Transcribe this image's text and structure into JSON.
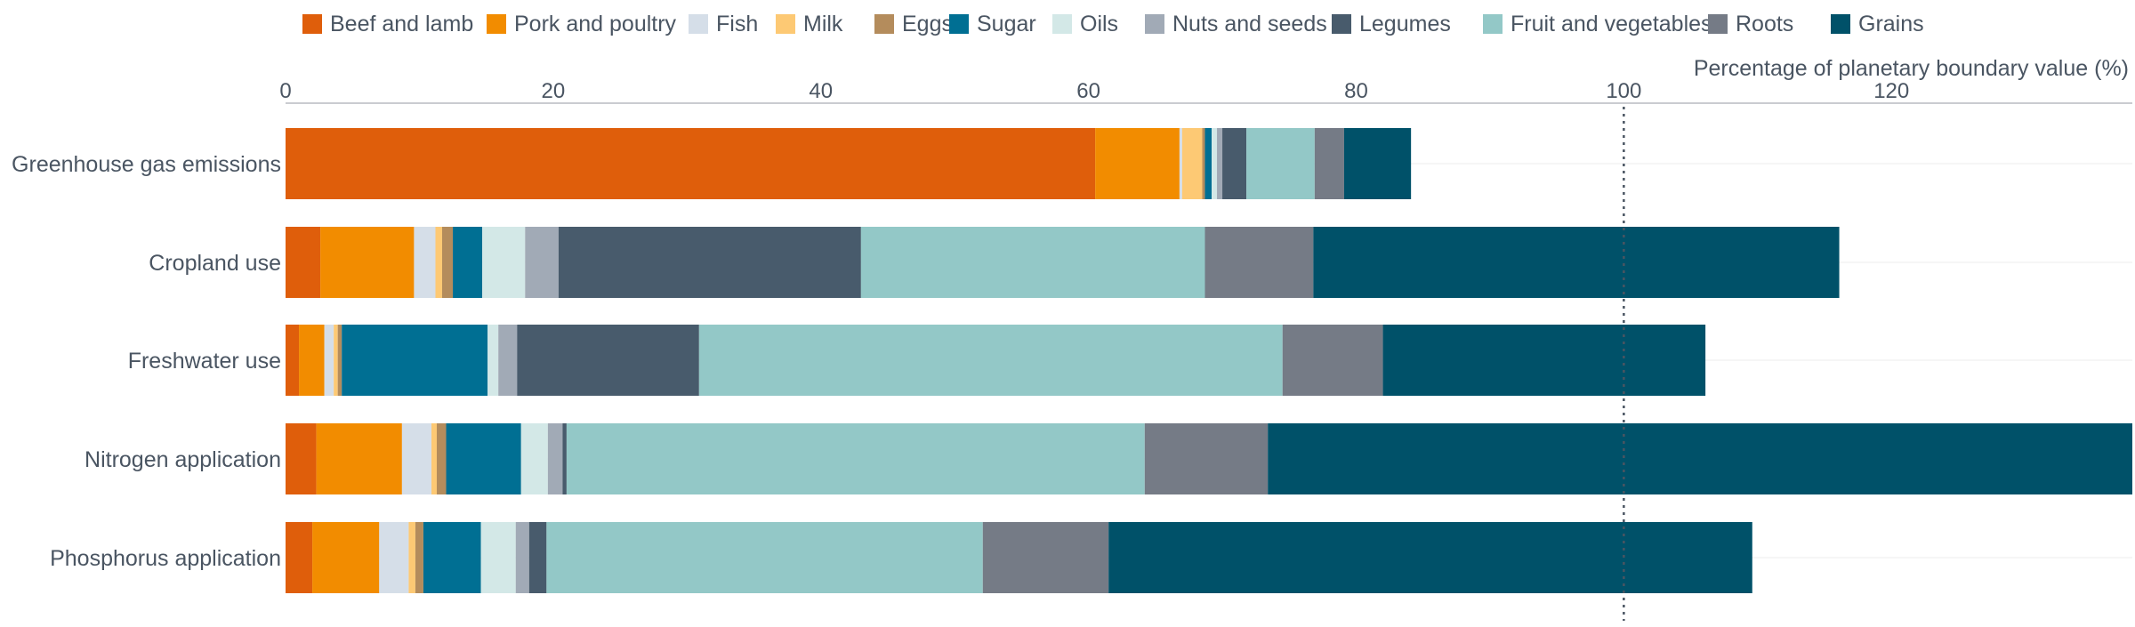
{
  "chart_data": {
    "type": "bar",
    "orientation": "horizontal",
    "stacked": true,
    "xlabel": "Percentage of planetary boundary value (%)",
    "xlim": [
      0,
      138
    ],
    "x_ticks": [
      0,
      20,
      40,
      60,
      80,
      100,
      120
    ],
    "reference_line": {
      "value": 100,
      "style": "dotted"
    },
    "legend_position": "top",
    "grid": "horizontal-light",
    "categories": [
      "Greenhouse gas emissions",
      "Cropland use",
      "Freshwater use",
      "Nitrogen application",
      "Phosphorus application"
    ],
    "series": [
      {
        "name": "Beef and lamb",
        "color": "#df5e0b",
        "values": [
          60.5,
          2.6,
          1.0,
          2.3,
          2.0
        ]
      },
      {
        "name": "Pork and poultry",
        "color": "#f28c00",
        "values": [
          6.3,
          7.0,
          1.9,
          6.4,
          5.0
        ]
      },
      {
        "name": "Fish",
        "color": "#d5dee8",
        "values": [
          0.2,
          1.6,
          0.7,
          2.2,
          2.2
        ]
      },
      {
        "name": "Milk",
        "color": "#fdc974",
        "values": [
          1.5,
          0.5,
          0.3,
          0.4,
          0.5
        ]
      },
      {
        "name": "Eggs",
        "color": "#b48c5c",
        "values": [
          0.2,
          0.8,
          0.3,
          0.7,
          0.6
        ]
      },
      {
        "name": "Sugar",
        "color": "#006f93",
        "values": [
          0.5,
          2.2,
          10.9,
          5.6,
          4.3
        ]
      },
      {
        "name": "Oils",
        "color": "#d3e8e7",
        "values": [
          0.4,
          3.2,
          0.8,
          2.0,
          2.6
        ]
      },
      {
        "name": "Nuts and seeds",
        "color": "#a1aab6",
        "values": [
          0.4,
          2.5,
          1.4,
          1.1,
          1.0
        ]
      },
      {
        "name": "Legumes",
        "color": "#485b6c",
        "values": [
          1.8,
          22.6,
          13.6,
          0.3,
          1.3
        ]
      },
      {
        "name": "Fruit and vegetables",
        "color": "#93c8c7",
        "values": [
          5.1,
          25.7,
          43.6,
          43.2,
          32.6
        ]
      },
      {
        "name": "Roots",
        "color": "#757b86",
        "values": [
          2.2,
          8.1,
          7.5,
          9.2,
          9.4
        ]
      },
      {
        "name": "Grains",
        "color": "#005169",
        "values": [
          5.0,
          39.3,
          24.1,
          64.7,
          48.1
        ]
      }
    ]
  }
}
